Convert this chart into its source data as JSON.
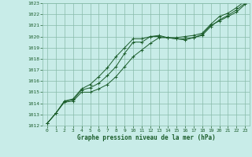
{
  "title": "Graphe pression niveau de la mer (hPa)",
  "bg_color": "#c8ece8",
  "grid_color": "#88bbaa",
  "line_color": "#1a5c2a",
  "xlim": [
    -0.5,
    23.5
  ],
  "ylim": [
    1012,
    1023
  ],
  "xticks": [
    0,
    1,
    2,
    3,
    4,
    5,
    6,
    7,
    8,
    9,
    10,
    11,
    12,
    13,
    14,
    15,
    16,
    17,
    18,
    19,
    20,
    21,
    22,
    23
  ],
  "yticks": [
    1012,
    1013,
    1014,
    1015,
    1016,
    1017,
    1018,
    1019,
    1020,
    1021,
    1022,
    1023
  ],
  "series1_x": [
    0,
    1,
    2,
    3,
    4,
    5,
    6,
    7,
    8,
    9,
    10,
    11,
    12,
    13,
    14,
    15,
    16,
    17,
    18,
    19,
    20,
    21,
    22,
    23
  ],
  "series1_y": [
    1012.2,
    1013.1,
    1014.1,
    1014.2,
    1015.0,
    1015.0,
    1015.3,
    1015.7,
    1016.4,
    1017.3,
    1018.2,
    1018.8,
    1019.4,
    1019.9,
    1019.9,
    1019.9,
    1020.0,
    1020.1,
    1020.3,
    1021.1,
    1021.8,
    1022.1,
    1022.6,
    1023.2
  ],
  "series2_x": [
    0,
    1,
    2,
    3,
    4,
    5,
    6,
    7,
    8,
    9,
    10,
    11,
    12,
    13,
    14,
    15,
    16,
    17,
    18,
    19,
    20,
    21,
    22,
    23
  ],
  "series2_y": [
    1012.2,
    1013.1,
    1014.2,
    1014.3,
    1015.2,
    1015.4,
    1015.8,
    1016.5,
    1017.3,
    1018.5,
    1019.5,
    1019.5,
    1020.0,
    1020.1,
    1019.9,
    1019.8,
    1019.8,
    1019.9,
    1020.1,
    1020.9,
    1021.5,
    1021.9,
    1022.4,
    1023.0
  ],
  "series3_x": [
    0,
    1,
    2,
    3,
    4,
    5,
    6,
    7,
    8,
    9,
    10,
    11,
    12,
    13,
    14,
    15,
    16,
    17,
    18,
    19,
    20,
    21,
    22,
    23
  ],
  "series3_y": [
    1012.2,
    1013.1,
    1014.2,
    1014.4,
    1015.3,
    1015.7,
    1016.4,
    1017.2,
    1018.2,
    1019.0,
    1019.8,
    1019.8,
    1020.0,
    1020.0,
    1019.9,
    1019.8,
    1019.7,
    1019.9,
    1020.2,
    1021.0,
    1021.4,
    1021.8,
    1022.2,
    1022.9
  ]
}
